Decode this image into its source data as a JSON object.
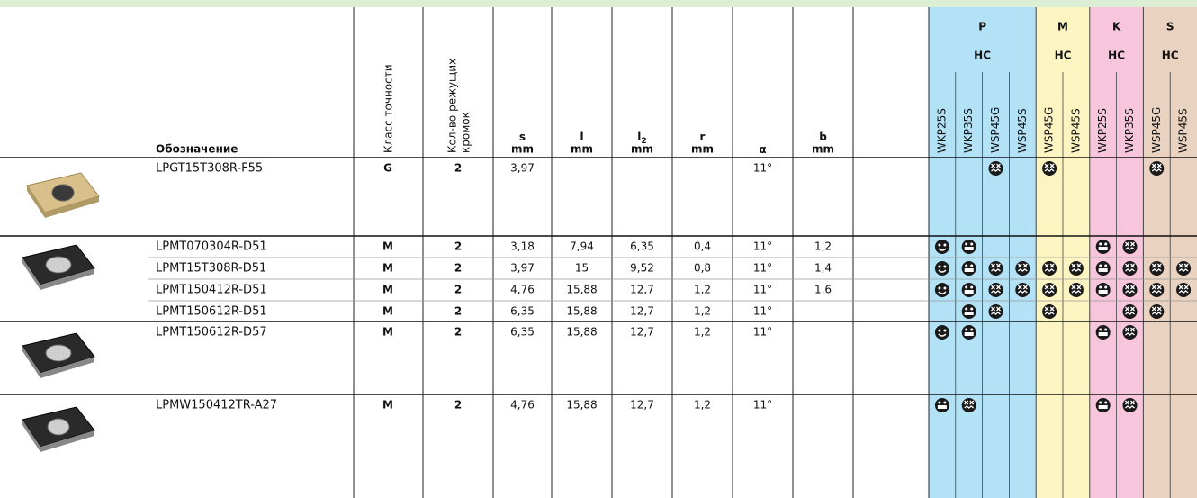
{
  "header": {
    "designation": "Обозначение",
    "class": "Класс точности",
    "edges": [
      "Кол-во режущих",
      "кромок"
    ],
    "columns": [
      {
        "name": "s",
        "unit": "mm"
      },
      {
        "name": "l",
        "unit": "mm"
      },
      {
        "name": "l",
        "sub": "2",
        "unit": "mm"
      },
      {
        "name": "r",
        "unit": "mm"
      },
      {
        "name": "α"
      },
      {
        "name": "b",
        "unit": "mm"
      }
    ],
    "groups": [
      {
        "letter": "P",
        "sub": "HC",
        "grades": [
          "WKP25S",
          "WKP35S",
          "WSP45G",
          "WSP45S"
        ]
      },
      {
        "letter": "M",
        "sub": "HC",
        "grades": [
          "WSP45G",
          "WSP45S"
        ]
      },
      {
        "letter": "K",
        "sub": "HC",
        "grades": [
          "WKP25S",
          "WKP35S"
        ]
      },
      {
        "letter": "S",
        "sub": "HC",
        "grades": [
          "WSP45G",
          "WSP45S"
        ]
      }
    ]
  },
  "rows": [
    {
      "designation": "LPGT15T308R-F55",
      "class": "G",
      "edges": "2",
      "dims": [
        "3,97",
        null,
        null,
        null,
        "11°",
        null
      ]
    },
    {
      "designation": "LPMT070304R-D51",
      "class": "M",
      "edges": "2",
      "dims": [
        "3,18",
        "7,94",
        "6,35",
        "0,4",
        "11°",
        "1,2"
      ]
    },
    {
      "designation": "LPMT15T308R-D51",
      "class": "M",
      "edges": "2",
      "dims": [
        "3,97",
        "15",
        "9,52",
        "0,8",
        "11°",
        "1,4"
      ]
    },
    {
      "designation": "LPMT150412R-D51",
      "class": "M",
      "edges": "2",
      "dims": [
        "4,76",
        "15,88",
        "12,7",
        "1,2",
        "11°",
        "1,6"
      ]
    },
    {
      "designation": "LPMT150612R-D51",
      "class": "M",
      "edges": "2",
      "dims": [
        "6,35",
        "15,88",
        "12,7",
        "1,2",
        "11°",
        null
      ]
    },
    {
      "designation": "LPMT150612R-D57",
      "class": "M",
      "edges": "2",
      "dims": [
        "6,35",
        "15,88",
        "12,7",
        "1,2",
        "11°",
        null
      ]
    },
    {
      "designation": "LPMW150412TR-A27",
      "class": "M",
      "edges": "2",
      "dims": [
        "4,76",
        "15,88",
        "12,7",
        "1,2",
        "11°",
        null
      ]
    }
  ]
}
